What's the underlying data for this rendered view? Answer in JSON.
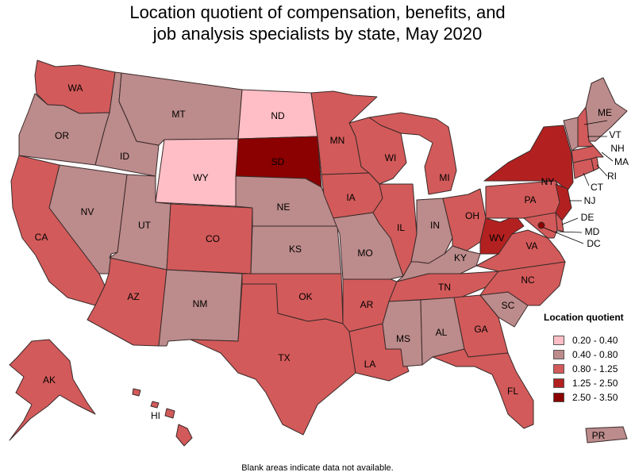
{
  "title": {
    "line1": "Location quotient of compensation, benefits, and",
    "line2": "job analysis specialists by state, May 2020"
  },
  "colors": {
    "c1": "#ffbec5",
    "c2": "#bc8b8b",
    "c3": "#d35a5a",
    "c4": "#b32020",
    "c5": "#8b0000"
  },
  "legend": {
    "title": "Location quotient",
    "items": [
      {
        "label": "0.20 - 0.40",
        "class": "c1"
      },
      {
        "label": "0.40 - 0.80",
        "class": "c2"
      },
      {
        "label": "0.80 - 1.25",
        "class": "c3"
      },
      {
        "label": "1.25 - 2.50",
        "class": "c4"
      },
      {
        "label": "2.50 - 3.50",
        "class": "c5"
      }
    ]
  },
  "states": {
    "WA": "c3",
    "OR": "c2",
    "CA": "c3",
    "ID": "c2",
    "NV": "c2",
    "MT": "c2",
    "WY": "c1",
    "UT": "c2",
    "AZ": "c3",
    "CO": "c3",
    "NM": "c2",
    "ND": "c1",
    "SD": "c5",
    "NE": "c2",
    "KS": "c2",
    "OK": "c3",
    "TX": "c3",
    "MN": "c3",
    "IA": "c3",
    "MO": "c2",
    "AR": "c3",
    "LA": "c3",
    "WI": "c3",
    "IL": "c3",
    "MI": "c3",
    "IN": "c2",
    "OH": "c3",
    "KY": "c2",
    "TN": "c3",
    "MS": "c2",
    "AL": "c2",
    "GA": "c3",
    "FL": "c3",
    "SC": "c2",
    "NC": "c3",
    "VA": "c3",
    "WV": "c4",
    "PA": "c3",
    "NY": "c4",
    "ME": "c2",
    "VT": "c2",
    "NH": "c3",
    "MA": "c3",
    "RI": "c3",
    "CT": "c3",
    "NJ": "c4",
    "DE": "c3",
    "MD": "c3",
    "DC": "c5",
    "AK": "c3",
    "HI": "c3",
    "PR": "c2"
  },
  "footnote": "Blank areas indicate data not available."
}
